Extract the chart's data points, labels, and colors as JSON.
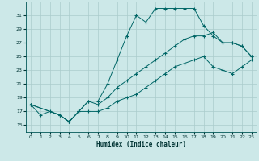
{
  "xlabel": "Humidex (Indice chaleur)",
  "bg_color": "#cce8e8",
  "grid_color": "#aacccc",
  "line_color": "#006666",
  "xlim": [
    -0.5,
    23.5
  ],
  "ylim": [
    14.0,
    33.0
  ],
  "xticks": [
    0,
    1,
    2,
    3,
    4,
    5,
    6,
    7,
    8,
    9,
    10,
    11,
    12,
    13,
    14,
    15,
    16,
    17,
    18,
    19,
    20,
    21,
    22,
    23
  ],
  "yticks": [
    15,
    17,
    19,
    21,
    23,
    25,
    27,
    29,
    31
  ],
  "line1_x": [
    0,
    1,
    2,
    3,
    4,
    5,
    6,
    7,
    8,
    9,
    10,
    11,
    12,
    13,
    14,
    15,
    16,
    17,
    18,
    19,
    20,
    21,
    22,
    23
  ],
  "line1_y": [
    18.0,
    16.5,
    17.0,
    16.5,
    15.5,
    17.0,
    18.5,
    18.5,
    21.0,
    24.5,
    28.0,
    31.0,
    30.0,
    32.0,
    32.0,
    32.0,
    32.0,
    32.0,
    29.5,
    28.0,
    27.0,
    27.0,
    26.5,
    25.0
  ],
  "line2_x": [
    0,
    3,
    4,
    5,
    6,
    7,
    8,
    9,
    10,
    11,
    12,
    13,
    14,
    15,
    16,
    17,
    18,
    19,
    20,
    21,
    22,
    23
  ],
  "line2_y": [
    18.0,
    16.5,
    15.5,
    17.0,
    18.5,
    18.0,
    19.0,
    20.5,
    21.5,
    22.5,
    23.5,
    24.5,
    25.5,
    26.5,
    27.5,
    28.0,
    28.0,
    28.5,
    27.0,
    27.0,
    26.5,
    25.0
  ],
  "line3_x": [
    0,
    3,
    4,
    5,
    6,
    7,
    8,
    9,
    10,
    11,
    12,
    13,
    14,
    15,
    16,
    17,
    18,
    19,
    20,
    21,
    22,
    23
  ],
  "line3_y": [
    18.0,
    16.5,
    15.5,
    17.0,
    17.0,
    17.0,
    17.5,
    18.5,
    19.0,
    19.5,
    20.5,
    21.5,
    22.5,
    23.5,
    24.0,
    24.5,
    25.0,
    23.5,
    23.0,
    22.5,
    23.5,
    24.5
  ]
}
